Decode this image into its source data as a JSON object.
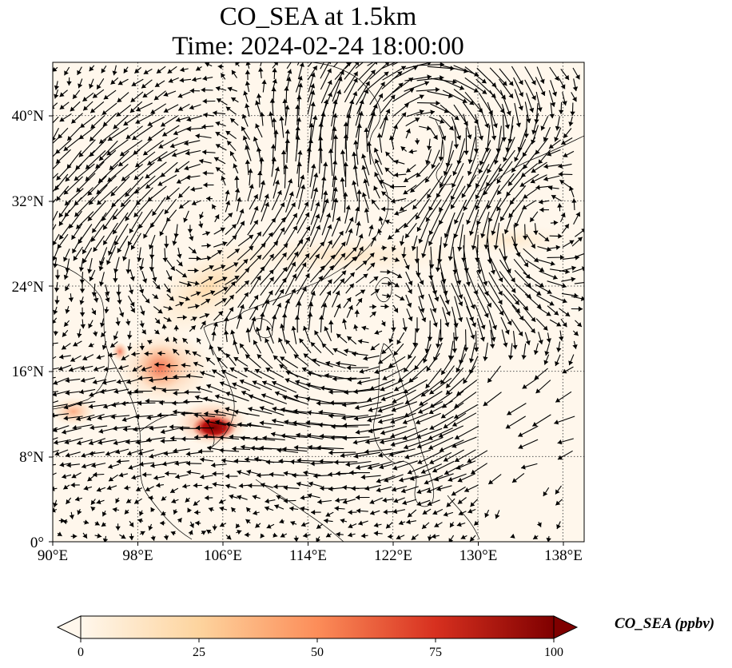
{
  "title": {
    "line1": "CO_SEA at 1.5km",
    "line2": "Time: 2024-02-24 18:00:00"
  },
  "map": {
    "lon_range": [
      90,
      140
    ],
    "lat_range": [
      0,
      45
    ],
    "x_ticks": [
      "90°E",
      "98°E",
      "106°E",
      "114°E",
      "122°E",
      "130°E",
      "138°E"
    ],
    "y_ticks": [
      "40°N",
      "32°N",
      "24°N",
      "16°N",
      "8°N",
      "0°"
    ],
    "gridlines": "dotted",
    "overlay": "wind vectors (quiver)",
    "colormap": "OrRd"
  },
  "colorbar": {
    "label": "CO_SEA (ppbv)",
    "ticks": [
      "0",
      "25",
      "50",
      "75",
      "100"
    ],
    "range": [
      0,
      100
    ],
    "extend": "both",
    "colors": [
      "#fff7ec",
      "#fdd49e",
      "#fc8d59",
      "#d7301f",
      "#7f0000"
    ]
  }
}
